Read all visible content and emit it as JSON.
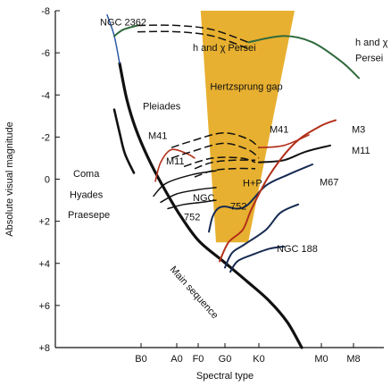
{
  "chart_data": {
    "type": "line",
    "title": "",
    "xlabel": "Spectral type",
    "ylabel": "Absolute visual magnitude",
    "x_ticks": [
      "B0",
      "A0",
      "F0",
      "G0",
      "K0",
      "M0",
      "M8"
    ],
    "x_tick_positions": [
      0,
      1,
      1.6,
      2.35,
      3.3,
      5.05,
      5.95
    ],
    "xlim": [
      -2.4,
      6.8
    ],
    "y_ticks": [
      "-8",
      "-6",
      "-4",
      "-2",
      "0",
      "+2",
      "+4",
      "+6",
      "+8"
    ],
    "y_tick_values": [
      -8,
      -6,
      -4,
      -2,
      0,
      2,
      4,
      6,
      8
    ],
    "ylim": [
      -8,
      8
    ],
    "y_inverted": true,
    "grid": false,
    "colors": {
      "gap": "#e8b030",
      "black": "#111111",
      "red": "#b2301a",
      "green": "#2f6a3c",
      "navy": "#162a52",
      "blue": "#2c5aa8"
    },
    "gap_region": {
      "label": "Hertzsprung gap",
      "polygon": [
        [
          1.67,
          -8.0
        ],
        [
          4.3,
          -8.0
        ],
        [
          3.0,
          3.0
        ],
        [
          2.1,
          3.0
        ]
      ]
    },
    "series": [
      {
        "name": "Main sequence",
        "color": "black",
        "width": 3.2,
        "dash": false,
        "points": [
          [
            -0.6,
            -5.5
          ],
          [
            -0.4,
            -3.8
          ],
          [
            -0.15,
            -2.4
          ],
          [
            0.2,
            -1.0
          ],
          [
            0.6,
            0.3
          ],
          [
            1.05,
            1.6
          ],
          [
            1.6,
            2.9
          ],
          [
            2.3,
            3.9
          ],
          [
            3.0,
            4.9
          ],
          [
            3.6,
            5.8
          ],
          [
            4.1,
            6.8
          ],
          [
            4.5,
            8.0
          ]
        ]
      },
      {
        "name": "",
        "color": "black",
        "width": 2.6,
        "dash": false,
        "points": [
          [
            -0.75,
            -3.3
          ],
          [
            -0.6,
            -2.2
          ],
          [
            -0.45,
            -1.2
          ],
          [
            -0.2,
            -0.3
          ]
        ]
      },
      {
        "name": "",
        "color": "black",
        "width": 1.5,
        "dash": false,
        "points": [
          [
            0.35,
            0.8
          ],
          [
            0.7,
            0.2
          ],
          [
            1.4,
            -0.2
          ],
          [
            2.1,
            -0.4
          ]
        ]
      },
      {
        "name": "",
        "color": "black",
        "width": 1.5,
        "dash": false,
        "points": [
          [
            0.55,
            1.1
          ],
          [
            1.0,
            0.7
          ],
          [
            1.6,
            0.5
          ],
          [
            2.1,
            0.4
          ]
        ]
      },
      {
        "name": "",
        "color": "black",
        "width": 1.5,
        "dash": false,
        "points": [
          [
            0.75,
            1.4
          ],
          [
            1.2,
            1.2
          ],
          [
            1.7,
            1.1
          ],
          [
            2.1,
            1.0
          ]
        ]
      },
      {
        "name": "",
        "color": "black",
        "width": 1.5,
        "dash": true,
        "points": [
          [
            1.5,
            -0.5
          ],
          [
            2.0,
            -0.8
          ],
          [
            2.6,
            -0.9
          ],
          [
            3.2,
            -0.9
          ]
        ]
      },
      {
        "name": "",
        "color": "black",
        "width": 1.5,
        "dash": true,
        "points": [
          [
            1.5,
            -0.1
          ],
          [
            2.0,
            -0.4
          ],
          [
            2.6,
            -0.5
          ],
          [
            3.2,
            -0.5
          ]
        ]
      },
      {
        "name": "",
        "color": "navy",
        "width": 2.0,
        "dash": false,
        "points": [
          [
            1.9,
            2.5
          ],
          [
            2.0,
            1.8
          ],
          [
            2.15,
            1.4
          ],
          [
            2.35,
            1.3
          ],
          [
            2.7,
            1.4
          ],
          [
            3.0,
            1.2
          ],
          [
            3.5,
            0.3
          ],
          [
            4.1,
            -0.2
          ],
          [
            4.8,
            -0.7
          ]
        ]
      },
      {
        "name": "",
        "color": "red",
        "width": 1.6,
        "dash": false,
        "points": [
          [
            0.4,
            0.1
          ],
          [
            0.55,
            -0.8
          ],
          [
            0.85,
            -1.4
          ],
          [
            1.3,
            -1.2
          ],
          [
            1.5,
            -1.0
          ]
        ]
      },
      {
        "name": "",
        "color": "red",
        "width": 1.6,
        "dash": false,
        "points": [
          [
            3.3,
            -1.5
          ],
          [
            4.0,
            -1.6
          ],
          [
            4.7,
            -2.1
          ]
        ]
      },
      {
        "name": "",
        "color": "black",
        "width": 1.5,
        "dash": true,
        "points": [
          [
            0.85,
            -1.5
          ],
          [
            1.4,
            -1.8
          ],
          [
            2.3,
            -2.2
          ],
          [
            3.0,
            -1.9
          ],
          [
            3.3,
            -1.5
          ]
        ]
      },
      {
        "name": "",
        "color": "black",
        "width": 1.5,
        "dash": true,
        "points": [
          [
            0.85,
            -1.0
          ],
          [
            1.4,
            -1.3
          ],
          [
            2.3,
            -1.7
          ],
          [
            3.0,
            -1.4
          ],
          [
            3.3,
            -1.0
          ]
        ]
      },
      {
        "name": "",
        "color": "black",
        "width": 1.5,
        "dash": true,
        "points": [
          [
            1.2,
            -0.6
          ],
          [
            2.0,
            -1.0
          ],
          [
            2.8,
            -1.0
          ],
          [
            3.2,
            -0.8
          ]
        ]
      },
      {
        "name": "",
        "color": "black",
        "width": 2.0,
        "dash": false,
        "points": [
          [
            3.3,
            -0.8
          ],
          [
            4.0,
            -0.9
          ],
          [
            4.6,
            -1.3
          ],
          [
            5.3,
            -1.6
          ]
        ]
      },
      {
        "name": "",
        "color": "red",
        "width": 2.0,
        "dash": false,
        "points": [
          [
            2.2,
            3.9
          ],
          [
            2.45,
            3.0
          ],
          [
            2.85,
            2.4
          ],
          [
            3.1,
            1.4
          ],
          [
            3.6,
            -0.2
          ],
          [
            4.3,
            -1.7
          ],
          [
            5.0,
            -2.5
          ],
          [
            5.45,
            -2.8
          ]
        ]
      },
      {
        "name": "",
        "color": "navy",
        "width": 2.0,
        "dash": false,
        "points": [
          [
            2.35,
            4.2
          ],
          [
            2.55,
            3.5
          ],
          [
            2.9,
            3.1
          ],
          [
            3.5,
            2.4
          ],
          [
            3.9,
            1.6
          ],
          [
            4.4,
            1.2
          ]
        ]
      },
      {
        "name": "",
        "color": "navy",
        "width": 2.0,
        "dash": false,
        "points": [
          [
            2.5,
            4.4
          ],
          [
            2.7,
            3.9
          ],
          [
            3.1,
            3.6
          ],
          [
            3.6,
            3.3
          ],
          [
            4.0,
            3.2
          ]
        ]
      },
      {
        "name": "",
        "color": "blue",
        "width": 1.5,
        "dash": false,
        "points": [
          [
            -0.6,
            -5.5
          ],
          [
            -0.75,
            -6.8
          ],
          [
            -0.95,
            -7.8
          ]
        ]
      },
      {
        "name": "",
        "color": "green",
        "width": 2.0,
        "dash": false,
        "points": [
          [
            -0.75,
            -6.8
          ],
          [
            -0.5,
            -7.1
          ],
          [
            -0.1,
            -7.3
          ]
        ]
      },
      {
        "name": "",
        "color": "black",
        "width": 1.5,
        "dash": true,
        "points": [
          [
            -0.1,
            -7.3
          ],
          [
            1.0,
            -7.3
          ],
          [
            2.0,
            -7.1
          ],
          [
            3.0,
            -6.5
          ]
        ]
      },
      {
        "name": "",
        "color": "black",
        "width": 1.5,
        "dash": true,
        "points": [
          [
            -0.1,
            -7.0
          ],
          [
            1.0,
            -7.0
          ],
          [
            2.0,
            -6.8
          ],
          [
            3.0,
            -6.2
          ]
        ]
      },
      {
        "name": "",
        "color": "green",
        "width": 2.0,
        "dash": false,
        "points": [
          [
            3.0,
            -6.5
          ],
          [
            4.0,
            -6.8
          ],
          [
            4.8,
            -6.5
          ],
          [
            5.6,
            -5.6
          ],
          [
            6.1,
            -4.8
          ]
        ]
      }
    ],
    "annotations": [
      {
        "text": "NGC 2362",
        "x": -1.15,
        "y": -7.3
      },
      {
        "text": "h and χ Persei",
        "x": 1.45,
        "y": -6.1
      },
      {
        "text": "h and χ",
        "x": 6.0,
        "y": -6.35
      },
      {
        "text": "Persei",
        "x": 6.0,
        "y": -5.6
      },
      {
        "text": "Pleiades",
        "x": 0.05,
        "y": -3.3
      },
      {
        "text": "M41",
        "x": 0.2,
        "y": -1.9
      },
      {
        "text": "M11",
        "x": 0.7,
        "y": -0.7
      },
      {
        "text": "M41",
        "x": 3.6,
        "y": -2.2
      },
      {
        "text": "M3",
        "x": 5.9,
        "y": -2.2
      },
      {
        "text": "M11",
        "x": 5.9,
        "y": -1.2
      },
      {
        "text": "M67",
        "x": 5.0,
        "y": 0.3
      },
      {
        "text": "Coma",
        "x": -1.9,
        "y": -0.1
      },
      {
        "text": "Hyades",
        "x": -2.0,
        "y": 0.9
      },
      {
        "text": "Praesepe",
        "x": -2.05,
        "y": 1.85
      },
      {
        "text": "NGC",
        "x": 1.45,
        "y": 1.05
      },
      {
        "text": "752",
        "x": 1.2,
        "y": 1.95
      },
      {
        "text": "752",
        "x": 2.5,
        "y": 1.45
      },
      {
        "text": "H+P",
        "x": 2.85,
        "y": 0.35
      },
      {
        "text": "NGC 188",
        "x": 3.8,
        "y": 3.45
      },
      {
        "text": "Main sequence",
        "x": 0.8,
        "y": 4.3,
        "rotate": 48
      }
    ]
  }
}
